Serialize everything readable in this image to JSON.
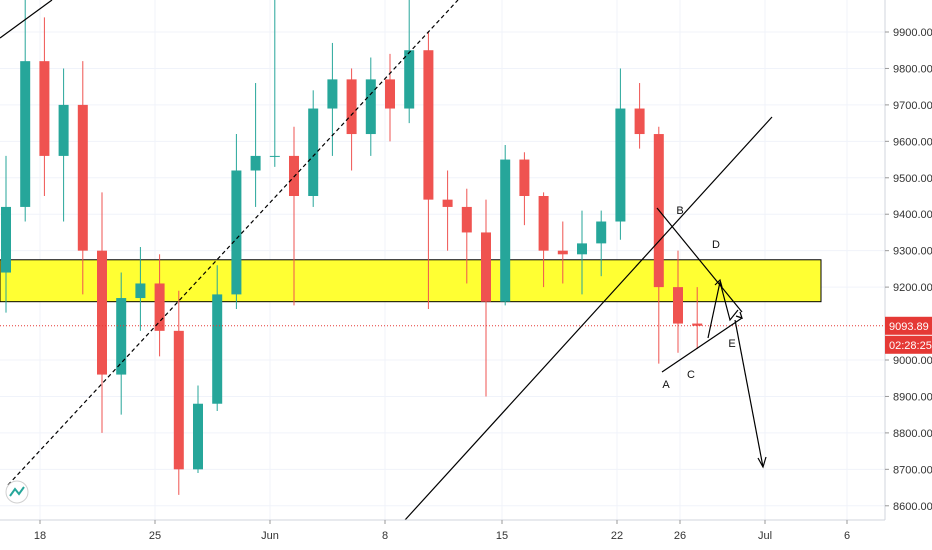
{
  "chart_data": {
    "type": "candlestick",
    "y_axis_ticks": [
      "9900.00",
      "9800.00",
      "9700.00",
      "9600.00",
      "9500.00",
      "9400.00",
      "9300.00",
      "9200.00",
      "9000.00",
      "8900.00",
      "8800.00",
      "8700.00",
      "8600.00"
    ],
    "x_axis_ticks": [
      "18",
      "25",
      "Jun",
      "8",
      "15",
      "22",
      "26",
      "Jul",
      "6"
    ],
    "ylim": [
      8565,
      10000
    ],
    "current_price": 9093.89,
    "current_price_label": "9093.89",
    "countdown_label": "02:28:25",
    "zone": {
      "low": 9160,
      "high": 9275
    },
    "pattern_labels": [
      "A",
      "B",
      "C",
      "D",
      "E"
    ],
    "colors": {
      "up": "#26a69a",
      "down": "#ef5350",
      "zone": "#ffff33",
      "price_line": "#e53935",
      "drawing": "#000000"
    },
    "series": [
      {
        "x": 0,
        "o": 9240,
        "h": 9560,
        "l": 9130,
        "c": 9420
      },
      {
        "x": 1,
        "o": 9420,
        "h": 9990,
        "l": 9380,
        "c": 9820
      },
      {
        "x": 2,
        "o": 9820,
        "h": 9940,
        "l": 9450,
        "c": 9560
      },
      {
        "x": 3,
        "o": 9560,
        "h": 9800,
        "l": 9380,
        "c": 9700
      },
      {
        "x": 4,
        "o": 9700,
        "h": 9820,
        "l": 9180,
        "c": 9300
      },
      {
        "x": 5,
        "o": 9300,
        "h": 9460,
        "l": 8800,
        "c": 8960
      },
      {
        "x": 6,
        "o": 8960,
        "h": 9240,
        "l": 8850,
        "c": 9170
      },
      {
        "x": 7,
        "o": 9170,
        "h": 9310,
        "l": 9080,
        "c": 9210
      },
      {
        "x": 8,
        "o": 9210,
        "h": 9290,
        "l": 9010,
        "c": 9080
      },
      {
        "x": 9,
        "o": 9080,
        "h": 9190,
        "l": 8630,
        "c": 8700
      },
      {
        "x": 10,
        "o": 8700,
        "h": 8930,
        "l": 8690,
        "c": 8880
      },
      {
        "x": 11,
        "o": 8880,
        "h": 9260,
        "l": 8860,
        "c": 9180
      },
      {
        "x": 12,
        "o": 9180,
        "h": 9620,
        "l": 9140,
        "c": 9520
      },
      {
        "x": 13,
        "o": 9520,
        "h": 9760,
        "l": 9420,
        "c": 9560
      },
      {
        "x": 14,
        "o": 9560,
        "h": 9990,
        "l": 9530,
        "c": 9560
      },
      {
        "x": 15,
        "o": 9560,
        "h": 9640,
        "l": 9150,
        "c": 9450
      },
      {
        "x": 16,
        "o": 9450,
        "h": 9740,
        "l": 9420,
        "c": 9690
      },
      {
        "x": 17,
        "o": 9690,
        "h": 9870,
        "l": 9560,
        "c": 9770
      },
      {
        "x": 18,
        "o": 9770,
        "h": 9800,
        "l": 9520,
        "c": 9620
      },
      {
        "x": 19,
        "o": 9620,
        "h": 9830,
        "l": 9560,
        "c": 9770
      },
      {
        "x": 20,
        "o": 9770,
        "h": 9840,
        "l": 9600,
        "c": 9690
      },
      {
        "x": 21,
        "o": 9690,
        "h": 9990,
        "l": 9650,
        "c": 9850
      },
      {
        "x": 22,
        "o": 9850,
        "h": 9900,
        "l": 9140,
        "c": 9440
      },
      {
        "x": 23,
        "o": 9440,
        "h": 9520,
        "l": 9300,
        "c": 9420
      },
      {
        "x": 24,
        "o": 9420,
        "h": 9470,
        "l": 9210,
        "c": 9350
      },
      {
        "x": 25,
        "o": 9350,
        "h": 9440,
        "l": 8900,
        "c": 9160
      },
      {
        "x": 26,
        "o": 9160,
        "h": 9590,
        "l": 9150,
        "c": 9550
      },
      {
        "x": 27,
        "o": 9550,
        "h": 9570,
        "l": 9370,
        "c": 9450
      },
      {
        "x": 28,
        "o": 9450,
        "h": 9460,
        "l": 9200,
        "c": 9300
      },
      {
        "x": 29,
        "o": 9300,
        "h": 9380,
        "l": 9210,
        "c": 9290
      },
      {
        "x": 30,
        "o": 9290,
        "h": 9410,
        "l": 9180,
        "c": 9320
      },
      {
        "x": 31,
        "o": 9320,
        "h": 9410,
        "l": 9230,
        "c": 9380
      },
      {
        "x": 32,
        "o": 9380,
        "h": 9800,
        "l": 9330,
        "c": 9690
      },
      {
        "x": 33,
        "o": 9690,
        "h": 9760,
        "l": 9580,
        "c": 9620
      },
      {
        "x": 34,
        "o": 9620,
        "h": 9640,
        "l": 8990,
        "c": 9200
      },
      {
        "x": 35,
        "o": 9200,
        "h": 9300,
        "l": 9020,
        "c": 9100
      },
      {
        "x": 36,
        "o": 9100,
        "h": 9200,
        "l": 9030,
        "c": 9094
      }
    ]
  }
}
